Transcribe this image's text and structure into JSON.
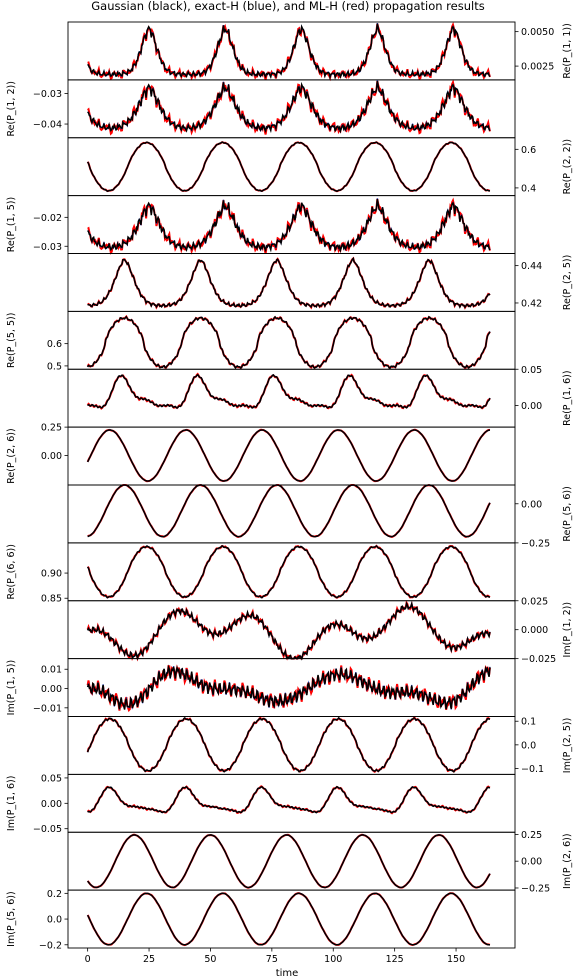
{
  "title": "Gaussian (black), exact-H (blue), and ML-H (red) propagation results",
  "xlabel": "time",
  "colors": {
    "gaussian": "#000000",
    "exact": "#1f3fbf",
    "ml": "#ff0000"
  },
  "chart_data": {
    "type": "line",
    "xlim": [
      -8,
      174
    ],
    "xticks": [
      0,
      25,
      50,
      75,
      100,
      125,
      150
    ],
    "xtick_labels": [
      "0",
      "25",
      "50",
      "75",
      "100",
      "125",
      "150"
    ],
    "series_legend": [
      "Gaussian (black)",
      "exact-H (blue)",
      "ML-H (red)"
    ],
    "panels": [
      {
        "ylabel": "Re(P_(1, 1))",
        "side": "right",
        "ylim": [
          0.0015,
          0.0057
        ],
        "yticks": [
          0.0025,
          0.005
        ],
        "ytick_labels": [
          "0.0025",
          "0.0050"
        ],
        "gen": {
          "kind": "bump",
          "base": 0.0019,
          "amp": 0.0033,
          "period": 31.0,
          "peak": 25.0,
          "width": 4.5,
          "shape": 0.6,
          "hf": 0.00022,
          "hf2": 0.00014,
          "hfGrow": true,
          "red": 0.00014,
          "nonneg": true
        }
      },
      {
        "ylabel": "Re(P_(1, 2))",
        "side": "left",
        "ylim": [
          -0.0445,
          -0.0255
        ],
        "yticks": [
          -0.04,
          -0.03
        ],
        "ytick_labels": [
          "−0.04",
          "−0.03"
        ],
        "gen": {
          "kind": "bump",
          "base": -0.0415,
          "amp": 0.0135,
          "period": 31.0,
          "peak": 25.0,
          "width": 6.0,
          "shape": 0.8,
          "hf": 0.0012,
          "hf2": 0.0008,
          "hfGrow": true,
          "red": 0.0008
        }
      },
      {
        "ylabel": "Re(P_(2, 2))",
        "side": "right",
        "ylim": [
          0.36,
          0.66
        ],
        "yticks": [
          0.4,
          0.6
        ],
        "ytick_labels": [
          "0.4",
          "0.6"
        ],
        "gen": {
          "kind": "sin",
          "mean": 0.51,
          "amp": 0.125,
          "period": 31.0,
          "peak": 24.0,
          "sharp": 0.4,
          "hf": 0.0015,
          "red": 0.001
        }
      },
      {
        "ylabel": "Re(P_(1, 5))",
        "side": "left",
        "ylim": [
          -0.0325,
          -0.0125
        ],
        "yticks": [
          -0.03,
          -0.02
        ],
        "ytick_labels": [
          "−0.03",
          "−0.02"
        ],
        "gen": {
          "kind": "bump",
          "base": -0.0305,
          "amp": 0.0145,
          "period": 31.0,
          "peak": 25.0,
          "width": 6.0,
          "shape": 0.8,
          "hf": 0.0013,
          "hf2": 0.0009,
          "hfGrow": true,
          "red": 0.0008
        }
      },
      {
        "ylabel": "Re(P_(2, 5))",
        "side": "right",
        "ylim": [
          0.4155,
          0.4465
        ],
        "yticks": [
          0.42,
          0.44
        ],
        "ytick_labels": [
          "0.42",
          "0.44"
        ],
        "gen": {
          "kind": "bump",
          "base": 0.4185,
          "amp": 0.0245,
          "period": 31.0,
          "peak": 15.0,
          "width": 5.5,
          "shape": 0.6,
          "hf": 0.0006,
          "hf2": 0.0003,
          "hfGrow": false,
          "red": 0.0002
        }
      },
      {
        "ylabel": "Re(P_(5, 5))",
        "side": "left",
        "ylim": [
          0.485,
          0.745
        ],
        "yticks": [
          0.5,
          0.6
        ],
        "ytick_labels": [
          "0.5",
          "0.6"
        ],
        "gen": {
          "kind": "sin",
          "mean": 0.605,
          "amp": 0.11,
          "period": 31.0,
          "peak": 15.0,
          "sharp": 0.9,
          "hf": 0.004,
          "red": 0.002
        }
      },
      {
        "ylabel": "Re(P_(1, 6))",
        "side": "right",
        "ylim": [
          -0.03,
          0.05
        ],
        "yticks": [
          0.0,
          0.05
        ],
        "ytick_labels": [
          "0.00",
          "0.05"
        ],
        "gen": {
          "kind": "wave",
          "mean": 0.012,
          "amp": 0.028,
          "period": 31.0,
          "peak": 15.0,
          "h2": 0.6,
          "h3": 0.35,
          "hf": 0.001,
          "red": 0.0008
        }
      },
      {
        "ylabel": "Re(P_(2, 6))",
        "side": "left",
        "ylim": [
          -0.26,
          0.25
        ],
        "yticks": [
          0.0,
          0.25
        ],
        "ytick_labels": [
          "0.00",
          "0.25"
        ],
        "gen": {
          "kind": "sin",
          "mean": 0.0,
          "amp": 0.225,
          "period": 31.0,
          "peak": 9.0,
          "sharp": 0.0,
          "hf": 0.0,
          "red": 0.002
        }
      },
      {
        "ylabel": "Re(P_(5, 6))",
        "side": "right",
        "ylim": [
          -0.25,
          0.12
        ],
        "yticks": [
          -0.25,
          0.0
        ],
        "ytick_labels": [
          "−0.25",
          "0.00"
        ],
        "gen": {
          "kind": "sin",
          "mean": -0.045,
          "amp": 0.165,
          "period": 31.0,
          "peak": 15.0,
          "sharp": 0.0,
          "hf": 0.0,
          "red": 0.002
        }
      },
      {
        "ylabel": "Re(P_(6, 6))",
        "side": "left",
        "ylim": [
          0.845,
          0.96
        ],
        "yticks": [
          0.85,
          0.9
        ],
        "ytick_labels": [
          "0.85",
          "0.90"
        ],
        "gen": {
          "kind": "sin",
          "mean": 0.9025,
          "amp": 0.05,
          "period": 31.0,
          "peak": 24.0,
          "sharp": 0.35,
          "hf": 0.001,
          "red": 0.001
        }
      },
      {
        "ylabel": "Im(P_(1, 2))",
        "side": "right",
        "ylim": [
          -0.025,
          0.025
        ],
        "yticks": [
          -0.025,
          0.0,
          0.025
        ],
        "ytick_labels": [
          "−0.025",
          "0.000",
          "0.025"
        ],
        "gen": {
          "kind": "drift",
          "mean": -0.002,
          "amp": 0.016,
          "period": 77.0,
          "peak": 30.0,
          "hf": 0.0018,
          "hf2": 0.0012,
          "red": 0.0009
        }
      },
      {
        "ylabel": "Im(P_(1, 5))",
        "side": "left",
        "ylim": [
          -0.0145,
          0.0155
        ],
        "yticks": [
          -0.01,
          0.0,
          0.01
        ],
        "ytick_labels": [
          "−0.01",
          "0.00",
          "0.01"
        ],
        "gen": {
          "kind": "drift",
          "mean": 0.0,
          "amp": 0.0085,
          "period": 65.0,
          "peak": 24.0,
          "hf": 0.0022,
          "hf2": 0.0015,
          "red": 0.0012
        }
      },
      {
        "ylabel": "Im(P_(2, 5))",
        "side": "right",
        "ylim": [
          -0.125,
          0.12
        ],
        "yticks": [
          -0.1,
          0.0,
          0.1
        ],
        "ytick_labels": [
          "−0.1",
          "0.0",
          "0.1"
        ],
        "gen": {
          "kind": "sin",
          "mean": 0.0,
          "amp": 0.11,
          "period": 31.0,
          "peak": 9.0,
          "sharp": 0.25,
          "hf": 0.003,
          "red": 0.002
        }
      },
      {
        "ylabel": "Im(P_(1, 6))",
        "side": "left",
        "ylim": [
          -0.057,
          0.057
        ],
        "yticks": [
          -0.05,
          0.0,
          0.05
        ],
        "ytick_labels": [
          "−0.05",
          "0.00",
          "0.05"
        ],
        "gen": {
          "kind": "wave",
          "mean": 0.0,
          "amp": 0.03,
          "period": 31.0,
          "peak": 10.0,
          "h2": 0.7,
          "h3": 0.25,
          "hf": 0.001,
          "red": 0.001
        }
      },
      {
        "ylabel": "Im(P_(2, 6))",
        "side": "right",
        "ylim": [
          -0.27,
          0.27
        ],
        "yticks": [
          -0.25,
          0.0,
          0.25
        ],
        "ytick_labels": [
          "−0.25",
          "0.00",
          "0.25"
        ],
        "gen": {
          "kind": "sin",
          "mean": 0.0,
          "amp": 0.245,
          "period": 31.0,
          "peak": 19.0,
          "sharp": 0.0,
          "hf": 0.0,
          "red": 0.002
        }
      },
      {
        "ylabel": "Im(P_(5, 6))",
        "side": "left",
        "ylim": [
          -0.225,
          0.225
        ],
        "yticks": [
          -0.2,
          0.0,
          0.2
        ],
        "ytick_labels": [
          "−0.2",
          "0.0",
          "0.2"
        ],
        "gen": {
          "kind": "sin",
          "mean": 0.0,
          "amp": 0.2,
          "period": 31.0,
          "peak": 24.0,
          "sharp": 0.0,
          "hf": 0.0,
          "red": 0.002,
          "start": 0.0
        }
      }
    ],
    "t_start": 0,
    "t_end": 164
  }
}
